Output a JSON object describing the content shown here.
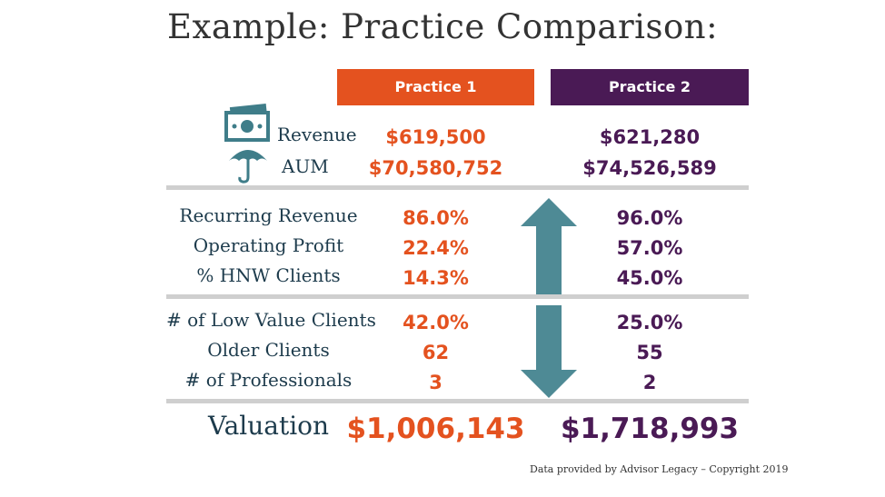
{
  "title": "Example:  Practice Comparison:",
  "headers": {
    "practice1": "Practice 1",
    "practice2": "Practice 2"
  },
  "colors": {
    "practice1": "#e4521f",
    "practice2": "#4a1a55",
    "label": "#1d3b4c",
    "arrow": "#4e8a95",
    "separator": "#cfcfcf"
  },
  "icons": [
    "money-icon",
    "umbrella-icon",
    "up-arrow-icon",
    "down-arrow-icon"
  ],
  "rows": {
    "revenue": {
      "label": "Revenue",
      "p1": "$619,500",
      "p2": "$621,280"
    },
    "aum": {
      "label": "AUM",
      "p1": "$70,580,752",
      "p2": "$74,526,589"
    },
    "recurring": {
      "label": "Recurring Revenue",
      "p1": "86.0%",
      "p2": "96.0%"
    },
    "operating": {
      "label": "Operating Profit",
      "p1": "22.4%",
      "p2": "57.0%"
    },
    "hnw": {
      "label": "% HNW Clients",
      "p1": "14.3%",
      "p2": "45.0%"
    },
    "lowvalue": {
      "label": "# of Low Value Clients",
      "p1": "42.0%",
      "p2": "25.0%"
    },
    "older": {
      "label": "Older Clients",
      "p1": "62",
      "p2": "55"
    },
    "professionals": {
      "label": "# of Professionals",
      "p1": "3",
      "p2": "2"
    },
    "valuation": {
      "label": "Valuation",
      "p1": "$1,006,143",
      "p2": "$1,718,993"
    }
  },
  "footer": "Data provided by Advisor Legacy – Copyright 2019"
}
